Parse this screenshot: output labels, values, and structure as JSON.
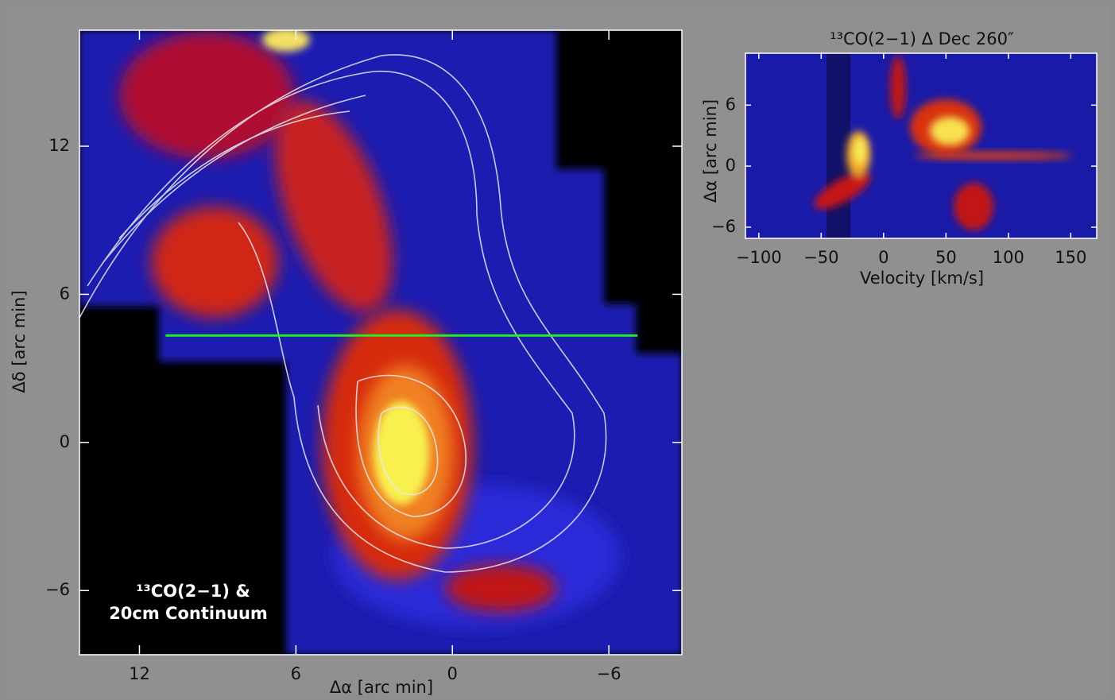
{
  "chart_data": [
    {
      "type": "image",
      "annotation": [
        "¹³CO(2−1) &",
        "20cm Continuum"
      ],
      "x_label": "Δα [arc min]",
      "y_label": "Δδ [arc min]",
      "xlim": [
        14.3,
        -8.8
      ],
      "ylim": [
        -8.6,
        16.7
      ],
      "xticks": [
        12,
        6,
        0,
        {
          "value": -6,
          "label": "−6"
        }
      ],
      "yticks": [
        {
          "value": -6,
          "label": "−6"
        },
        0,
        6,
        12
      ],
      "slice": {
        "y": 4.33,
        "x": [
          11.0,
          -7.1
        ],
        "color": "#22ee22"
      }
    },
    {
      "type": "image",
      "title": "¹³CO(2−1) Δ Dec 260″",
      "x_label": "Velocity [km/s]",
      "y_label": "Δα [arc min]",
      "xlim": [
        -110.7,
        170.8
      ],
      "ylim": [
        -7.1,
        11.1
      ],
      "xticks": [
        {
          "value": -100,
          "label": "−100"
        },
        {
          "value": -50,
          "label": "−50"
        },
        0,
        50,
        100,
        150
      ],
      "yticks": [
        {
          "value": -6,
          "label": "−6"
        },
        0,
        6
      ]
    }
  ]
}
